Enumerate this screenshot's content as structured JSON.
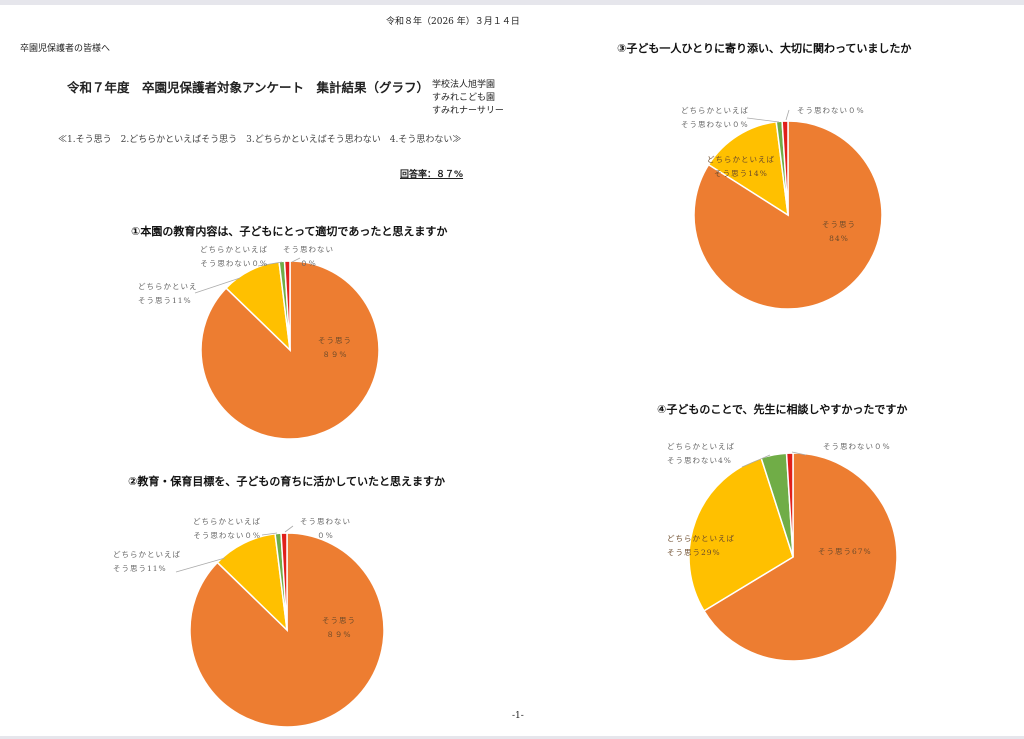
{
  "header": {
    "date": "令和８年（2026 年）３月１４日",
    "addressee": "卒園児保護者の皆様へ",
    "title": "令和７年度　卒園児保護者対象アンケート　集計結果（グラフ）",
    "org": [
      "学校法人旭学園",
      "すみれこども園",
      "すみれナーサリー"
    ],
    "scale": "≪1.そう思う　2.どちらかといえばそう思う　3.どちらかといえばそう思わない　4.そう思わない≫",
    "response_rate": "回答率：８７%"
  },
  "footer": {
    "page": "-1-"
  },
  "colors": {
    "そう思う": "#ed7d31",
    "どちらかといえばそう思う": "#ffc000",
    "どちらかといえばそう思わない": "#70ad47",
    "そう思わない": "#e0201b"
  },
  "chart_data": [
    {
      "type": "pie",
      "title": "①本園の教育内容は、子どもにとって適切であったと思えますか",
      "categories": [
        "そう思う",
        "どちらかといえばそう思う",
        "どちらかといえばそう思わない",
        "そう思わない"
      ],
      "values": [
        89,
        11,
        0,
        0
      ],
      "labels": [
        [
          "そう思う",
          "８９%"
        ],
        [
          "どちらかといえ",
          "そう思う11%"
        ],
        [
          "どちらかといえば",
          "そう思わない０%"
        ],
        [
          "そう思わない",
          "０%"
        ]
      ]
    },
    {
      "type": "pie",
      "title": "②教育・保育目標を、子どもの育ちに活かしていたと思えますか",
      "categories": [
        "そう思う",
        "どちらかといえばそう思う",
        "どちらかといえばそう思わない",
        "そう思わない"
      ],
      "values": [
        89,
        11,
        0,
        0
      ],
      "labels": [
        [
          "そう思う",
          "８９%"
        ],
        [
          "どちらかといえば",
          "そう思う11%"
        ],
        [
          "どちらかといえば",
          "そう思わない０%"
        ],
        [
          "そう思わない",
          "０%"
        ]
      ]
    },
    {
      "type": "pie",
      "title": "③子ども一人ひとりに寄り添い、大切に関わっていましたか",
      "categories": [
        "そう思う",
        "どちらかといえばそう思う",
        "どちらかといえばそう思わない",
        "そう思わない"
      ],
      "values": [
        84,
        14,
        0,
        0
      ],
      "labels": [
        [
          "そう思う",
          "84%"
        ],
        [
          "どちらかといえば",
          "そう思う14%"
        ],
        [
          "どちらかといえば",
          "そう思わない０%"
        ],
        [
          "そう思わない０%",
          ""
        ]
      ]
    },
    {
      "type": "pie",
      "title": "④子どものことで、先生に相談しやすかったですか",
      "categories": [
        "そう思う",
        "どちらかといえばそう思う",
        "どちらかといえばそう思わない",
        "そう思わない"
      ],
      "values": [
        67,
        29,
        4,
        0
      ],
      "labels": [
        [
          "そう思う67%",
          ""
        ],
        [
          "どちらかといえば",
          "そう思う29%"
        ],
        [
          "どちらかといえば",
          "そう思わない4%"
        ],
        [
          "そう思わない０%",
          ""
        ]
      ]
    }
  ]
}
